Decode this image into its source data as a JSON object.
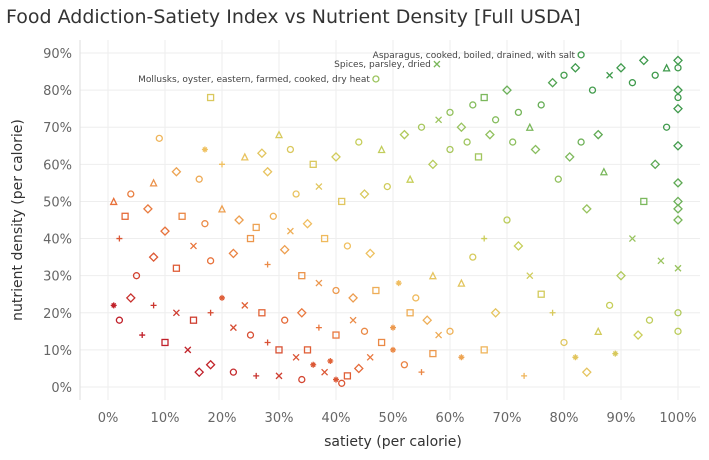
{
  "chart_data": {
    "type": "scatter",
    "title": "Food Addiction-Satiety Index vs Nutrient Density [Full USDA]",
    "xlabel": "satiety (per calorie)",
    "ylabel": "nutrient density (per calorie)",
    "xlim": [
      0,
      100
    ],
    "ylim": [
      0,
      90
    ],
    "x_ticks": [
      "0%",
      "10%",
      "20%",
      "30%",
      "40%",
      "50%",
      "60%",
      "70%",
      "80%",
      "90%",
      "100%"
    ],
    "y_ticks": [
      "0%",
      "10%",
      "20%",
      "30%",
      "40%",
      "50%",
      "60%",
      "70%",
      "80%",
      "90%"
    ],
    "grid": true,
    "color_scale": [
      "#c0202a",
      "#e8703a",
      "#f0c060",
      "#c8cf5a",
      "#8cc060",
      "#3f9a4c"
    ],
    "shapes": [
      "circle",
      "square",
      "diamond",
      "triangle",
      "cross",
      "plus",
      "asterisk"
    ],
    "annotations": [
      {
        "label": "Asparagus, cooked, boiled, drained, with salt",
        "x": 83,
        "y": 89.5
      },
      {
        "label": "Spices, parsley, dried",
        "x": 57.7,
        "y": 87
      },
      {
        "label": "Mollusks, oyster, eastern, farmed, cooked, dry heat",
        "x": 47,
        "y": 83
      }
    ],
    "points": [
      [
        40,
        2,
        6
      ],
      [
        41,
        1,
        0
      ],
      [
        38,
        4,
        4
      ],
      [
        42,
        3,
        1
      ],
      [
        36,
        6,
        6
      ],
      [
        33,
        8,
        4
      ],
      [
        30,
        10,
        1
      ],
      [
        28,
        12,
        5
      ],
      [
        25,
        14,
        0
      ],
      [
        22,
        16,
        4
      ],
      [
        35,
        10,
        1
      ],
      [
        39,
        7,
        6
      ],
      [
        44,
        5,
        2
      ],
      [
        46,
        8,
        4
      ],
      [
        48,
        12,
        1
      ],
      [
        50,
        10,
        6
      ],
      [
        52,
        6,
        0
      ],
      [
        55,
        4,
        5
      ],
      [
        57,
        9,
        1
      ],
      [
        58,
        14,
        4
      ],
      [
        56,
        18,
        2
      ],
      [
        53,
        20,
        1
      ],
      [
        50,
        16,
        6
      ],
      [
        45,
        15,
        0
      ],
      [
        43,
        18,
        4
      ],
      [
        40,
        14,
        1
      ],
      [
        37,
        16,
        5
      ],
      [
        34,
        20,
        2
      ],
      [
        31,
        18,
        0
      ],
      [
        27,
        20,
        1
      ],
      [
        24,
        22,
        4
      ],
      [
        20,
        24,
        6
      ],
      [
        18,
        20,
        5
      ],
      [
        15,
        18,
        1
      ],
      [
        12,
        20,
        4
      ],
      [
        8,
        22,
        5
      ],
      [
        4,
        24,
        2
      ],
      [
        1,
        22,
        6
      ],
      [
        2,
        18,
        0
      ],
      [
        6,
        14,
        5
      ],
      [
        10,
        12,
        1
      ],
      [
        14,
        10,
        4
      ],
      [
        18,
        6,
        2
      ],
      [
        22,
        4,
        0
      ],
      [
        26,
        3,
        5
      ],
      [
        16,
        4,
        2
      ],
      [
        30,
        3,
        4
      ],
      [
        34,
        2,
        0
      ],
      [
        5,
        30,
        0
      ],
      [
        8,
        35,
        2
      ],
      [
        12,
        32,
        1
      ],
      [
        15,
        38,
        4
      ],
      [
        18,
        34,
        0
      ],
      [
        22,
        36,
        2
      ],
      [
        25,
        40,
        1
      ],
      [
        28,
        33,
        5
      ],
      [
        31,
        37,
        2
      ],
      [
        34,
        30,
        1
      ],
      [
        37,
        28,
        4
      ],
      [
        40,
        26,
        0
      ],
      [
        43,
        24,
        2
      ],
      [
        47,
        26,
        1
      ],
      [
        51,
        28,
        6
      ],
      [
        54,
        24,
        0
      ],
      [
        57,
        30,
        3
      ],
      [
        10,
        42,
        2
      ],
      [
        13,
        46,
        1
      ],
      [
        17,
        44,
        0
      ],
      [
        20,
        48,
        3
      ],
      [
        23,
        45,
        2
      ],
      [
        26,
        43,
        1
      ],
      [
        29,
        46,
        0
      ],
      [
        32,
        42,
        4
      ],
      [
        35,
        44,
        2
      ],
      [
        38,
        40,
        1
      ],
      [
        42,
        38,
        0
      ],
      [
        46,
        36,
        2
      ],
      [
        2,
        40,
        5
      ],
      [
        3,
        46,
        1
      ],
      [
        1,
        50,
        3
      ],
      [
        4,
        52,
        0
      ],
      [
        7,
        48,
        2
      ],
      [
        8,
        55,
        3
      ],
      [
        12,
        58,
        2
      ],
      [
        16,
        56,
        0
      ],
      [
        20,
        60,
        5
      ],
      [
        24,
        62,
        3
      ],
      [
        28,
        58,
        2
      ],
      [
        32,
        64,
        0
      ],
      [
        36,
        60,
        1
      ],
      [
        40,
        62,
        2
      ],
      [
        44,
        66,
        0
      ],
      [
        48,
        64,
        3
      ],
      [
        52,
        68,
        2
      ],
      [
        55,
        70,
        0
      ],
      [
        58,
        72,
        4
      ],
      [
        60,
        74,
        0
      ],
      [
        62,
        70,
        2
      ],
      [
        64,
        76,
        0
      ],
      [
        66,
        78,
        1
      ],
      [
        68,
        72,
        0
      ],
      [
        70,
        80,
        2
      ],
      [
        72,
        74,
        0
      ],
      [
        74,
        70,
        3
      ],
      [
        76,
        76,
        0
      ],
      [
        78,
        82,
        2
      ],
      [
        80,
        84,
        0
      ],
      [
        82,
        86,
        2
      ],
      [
        85,
        80,
        0
      ],
      [
        88,
        84,
        4
      ],
      [
        90,
        86,
        2
      ],
      [
        92,
        82,
        0
      ],
      [
        94,
        88,
        2
      ],
      [
        96,
        84,
        0
      ],
      [
        98,
        86,
        3
      ],
      [
        63,
        66,
        0
      ],
      [
        67,
        68,
        2
      ],
      [
        71,
        66,
        0
      ],
      [
        75,
        64,
        2
      ],
      [
        65,
        62,
        1
      ],
      [
        60,
        64,
        0
      ],
      [
        57,
        60,
        2
      ],
      [
        53,
        56,
        3
      ],
      [
        49,
        54,
        0
      ],
      [
        45,
        52,
        2
      ],
      [
        41,
        50,
        1
      ],
      [
        37,
        54,
        4
      ],
      [
        33,
        52,
        0
      ],
      [
        18,
        78,
        1
      ],
      [
        17,
        64,
        6
      ],
      [
        27,
        63,
        2
      ],
      [
        30,
        68,
        3
      ],
      [
        9,
        67,
        0
      ],
      [
        70,
        45,
        0
      ],
      [
        72,
        38,
        2
      ],
      [
        74,
        30,
        4
      ],
      [
        76,
        25,
        1
      ],
      [
        78,
        20,
        5
      ],
      [
        80,
        12,
        0
      ],
      [
        82,
        8,
        6
      ],
      [
        84,
        4,
        2
      ],
      [
        86,
        15,
        3
      ],
      [
        88,
        22,
        0
      ],
      [
        90,
        30,
        2
      ],
      [
        92,
        40,
        4
      ],
      [
        94,
        50,
        1
      ],
      [
        96,
        60,
        2
      ],
      [
        98,
        70,
        0
      ],
      [
        100,
        20,
        0
      ],
      [
        100,
        15,
        0
      ],
      [
        100,
        45,
        2
      ],
      [
        100,
        48,
        2
      ],
      [
        100,
        50,
        2
      ],
      [
        100,
        55,
        2
      ],
      [
        100,
        75,
        2
      ],
      [
        100,
        78,
        0
      ],
      [
        100,
        80,
        2
      ],
      [
        100,
        88,
        2
      ],
      [
        100,
        86,
        0
      ],
      [
        100,
        65,
        2
      ],
      [
        100,
        32,
        4
      ],
      [
        62,
        28,
        3
      ],
      [
        64,
        35,
        0
      ],
      [
        66,
        40,
        5
      ],
      [
        68,
        20,
        2
      ],
      [
        60,
        15,
        0
      ],
      [
        62,
        8,
        6
      ],
      [
        66,
        10,
        1
      ],
      [
        73,
        3,
        5
      ],
      [
        84,
        48,
        2
      ],
      [
        87,
        58,
        3
      ],
      [
        89,
        9,
        6
      ],
      [
        93,
        14,
        2
      ],
      [
        95,
        18,
        0
      ],
      [
        97,
        34,
        4
      ],
      [
        79,
        56,
        0
      ],
      [
        81,
        62,
        2
      ],
      [
        83,
        66,
        0
      ],
      [
        86,
        68,
        2
      ]
    ]
  }
}
